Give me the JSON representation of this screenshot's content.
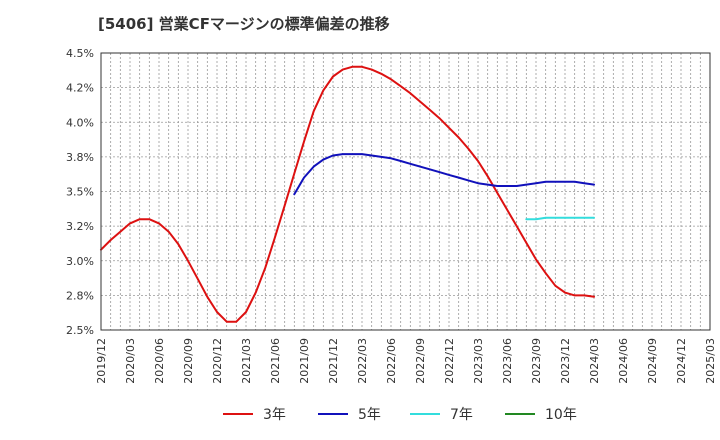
{
  "chart_data": {
    "type": "line",
    "title": "[5406]  営業CFマージンの標準偏差の推移",
    "xlabel": "",
    "ylabel": "",
    "ylim": [
      2.5,
      4.5
    ],
    "y_ticks": [
      2.5,
      2.75,
      3.0,
      3.25,
      3.5,
      3.75,
      4.0,
      4.25,
      4.5
    ],
    "y_tick_labels": [
      "2.5%",
      "2.8%",
      "3.0%",
      "3.2%",
      "3.5%",
      "3.8%",
      "4.0%",
      "4.2%",
      "4.5%"
    ],
    "x_tick_labels": [
      "2019/12",
      "2020/03",
      "2020/06",
      "2020/09",
      "2020/12",
      "2021/03",
      "2021/06",
      "2021/09",
      "2021/12",
      "2022/03",
      "2022/06",
      "2022/09",
      "2022/12",
      "2023/03",
      "2023/06",
      "2023/09",
      "2023/12",
      "2024/03",
      "2024/06",
      "2024/09",
      "2024/12",
      "2025/03"
    ],
    "x_start": "2019/12",
    "x_end": "2025/03",
    "grid": true,
    "legend_position": "bottom",
    "series": [
      {
        "name": "3年",
        "color": "#dd1111",
        "x": [
          "2019/12",
          "2020/01",
          "2020/02",
          "2020/03",
          "2020/04",
          "2020/05",
          "2020/06",
          "2020/07",
          "2020/08",
          "2020/09",
          "2020/10",
          "2020/11",
          "2020/12",
          "2021/01",
          "2021/02",
          "2021/03",
          "2021/04",
          "2021/05",
          "2021/06",
          "2021/07",
          "2021/08",
          "2021/09",
          "2021/10",
          "2021/11",
          "2021/12",
          "2022/01",
          "2022/02",
          "2022/03",
          "2022/04",
          "2022/05",
          "2022/06",
          "2022/07",
          "2022/08",
          "2022/09",
          "2022/10",
          "2022/11",
          "2022/12",
          "2023/01",
          "2023/02",
          "2023/03",
          "2023/04",
          "2023/05",
          "2023/06",
          "2023/07",
          "2023/08",
          "2023/09",
          "2023/10",
          "2023/11",
          "2023/12",
          "2024/01",
          "2024/02",
          "2024/03"
        ],
        "values": [
          3.08,
          3.15,
          3.21,
          3.27,
          3.3,
          3.3,
          3.27,
          3.21,
          3.12,
          3.0,
          2.87,
          2.74,
          2.63,
          2.56,
          2.56,
          2.63,
          2.77,
          2.95,
          3.17,
          3.4,
          3.63,
          3.86,
          4.08,
          4.23,
          4.33,
          4.38,
          4.4,
          4.4,
          4.38,
          4.35,
          4.31,
          4.26,
          4.21,
          4.15,
          4.09,
          4.03,
          3.96,
          3.89,
          3.81,
          3.72,
          3.61,
          3.49,
          3.37,
          3.25,
          3.13,
          3.01,
          2.91,
          2.82,
          2.77,
          2.75,
          2.75,
          2.74
        ]
      },
      {
        "name": "5年",
        "color": "#1111bb",
        "x": [
          "2021/08",
          "2021/09",
          "2021/10",
          "2021/11",
          "2021/12",
          "2022/01",
          "2022/02",
          "2022/03",
          "2022/04",
          "2022/05",
          "2022/06",
          "2022/07",
          "2022/08",
          "2022/09",
          "2022/10",
          "2022/11",
          "2022/12",
          "2023/01",
          "2023/02",
          "2023/03",
          "2023/04",
          "2023/05",
          "2023/06",
          "2023/07",
          "2023/08",
          "2023/09",
          "2023/10",
          "2023/11",
          "2023/12",
          "2024/01",
          "2024/02",
          "2024/03"
        ],
        "values": [
          3.48,
          3.6,
          3.68,
          3.73,
          3.76,
          3.77,
          3.77,
          3.77,
          3.76,
          3.75,
          3.74,
          3.72,
          3.7,
          3.68,
          3.66,
          3.64,
          3.62,
          3.6,
          3.58,
          3.56,
          3.55,
          3.54,
          3.54,
          3.54,
          3.55,
          3.56,
          3.57,
          3.57,
          3.57,
          3.57,
          3.56,
          3.55
        ]
      },
      {
        "name": "7年",
        "color": "#33dddd",
        "x": [
          "2023/08",
          "2023/09",
          "2023/10",
          "2023/11",
          "2023/12",
          "2024/01",
          "2024/02",
          "2024/03"
        ],
        "values": [
          3.3,
          3.3,
          3.31,
          3.31,
          3.31,
          3.31,
          3.31,
          3.31
        ]
      },
      {
        "name": "10年",
        "color": "#228822",
        "x": [],
        "values": []
      }
    ]
  }
}
